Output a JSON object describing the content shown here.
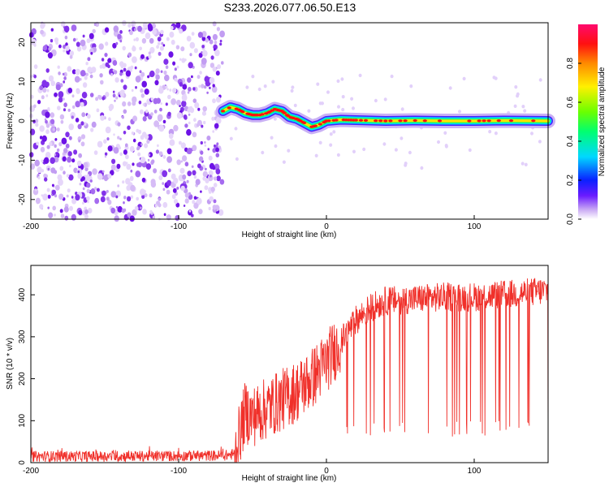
{
  "title": "S233.2026.077.06.50.E13",
  "chart_data": [
    {
      "type": "heatmap",
      "xlabel": "Height of straight line (km)",
      "ylabel": "Frequency (Hz)",
      "xlim": [
        -200,
        150
      ],
      "ylim": [
        -25,
        25
      ],
      "xticks": [
        -200,
        -100,
        0,
        100
      ],
      "yticks": [
        -20,
        -10,
        0,
        10,
        20
      ],
      "noise_region_x": [
        -200,
        -70
      ],
      "ridge_center": [
        [
          -70,
          2.5
        ],
        [
          -65,
          3.5
        ],
        [
          -60,
          3.0
        ],
        [
          -55,
          2.0
        ],
        [
          -50,
          1.5
        ],
        [
          -45,
          1.5
        ],
        [
          -40,
          2.0
        ],
        [
          -35,
          3.0
        ],
        [
          -30,
          2.5
        ],
        [
          -25,
          1.0
        ],
        [
          -20,
          0.5
        ],
        [
          -15,
          -0.5
        ],
        [
          -10,
          -1.5
        ],
        [
          -5,
          -1.0
        ],
        [
          0,
          0.0
        ],
        [
          10,
          0.3
        ],
        [
          20,
          0.2
        ],
        [
          40,
          0.0
        ],
        [
          60,
          0.1
        ],
        [
          80,
          0.0
        ],
        [
          100,
          0.0
        ],
        [
          120,
          0.1
        ],
        [
          150,
          0.0
        ]
      ],
      "colorbar": {
        "label": "Normalized spectral amplitude",
        "range": [
          0,
          1
        ],
        "ticks": [
          0.0,
          0.2,
          0.4,
          0.6,
          0.8
        ]
      }
    },
    {
      "type": "line",
      "xlabel": "Height of straight line (km)",
      "ylabel": "SNR (10 * v/v)",
      "xlim": [
        -200,
        150
      ],
      "ylim": [
        0,
        470
      ],
      "xticks": [
        -200,
        -100,
        0,
        100
      ],
      "yticks": [
        0,
        100,
        200,
        300,
        400
      ],
      "color": "#f0302a",
      "series": [
        {
          "name": "SNR",
          "x": [
            -200,
            -150,
            -100,
            -70,
            -62,
            -55,
            -50,
            -40,
            -30,
            -20,
            -10,
            0,
            10,
            20,
            30,
            40,
            60,
            80,
            100,
            120,
            150
          ],
          "y": [
            15,
            15,
            16,
            17,
            20,
            120,
            110,
            130,
            150,
            170,
            200,
            240,
            290,
            340,
            370,
            385,
            390,
            395,
            395,
            400,
            410
          ]
        }
      ]
    }
  ]
}
